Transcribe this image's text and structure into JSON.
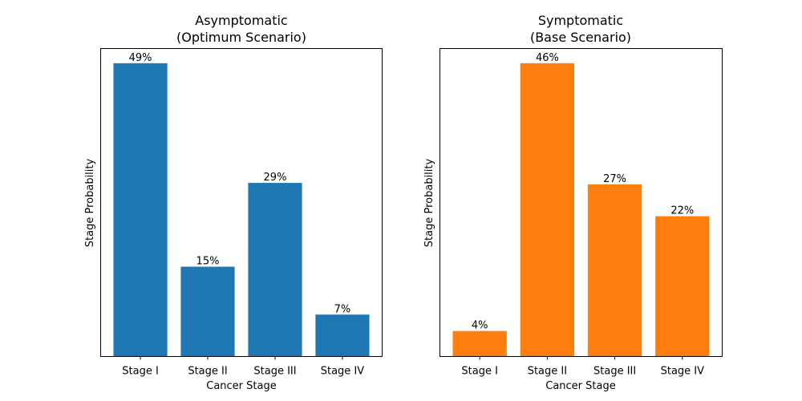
{
  "chart_data": [
    {
      "type": "bar",
      "title_line1": "Asymptomatic",
      "title_line2": "(Optimum Scenario)",
      "xlabel": "Cancer Stage",
      "ylabel": "Stage Probability",
      "categories": [
        "Stage I",
        "Stage II",
        "Stage III",
        "Stage IV"
      ],
      "values": [
        0.49,
        0.15,
        0.29,
        0.07
      ],
      "value_labels": [
        "49%",
        "15%",
        "29%",
        "7%"
      ],
      "ylim": [
        0,
        0.5145
      ],
      "yticks_shown": false,
      "grid": false,
      "color": "#1f77b4"
    },
    {
      "type": "bar",
      "title_line1": "Symptomatic",
      "title_line2": "(Base Scenario)",
      "xlabel": "Cancer Stage",
      "ylabel": "Stage Probability",
      "categories": [
        "Stage I",
        "Stage II",
        "Stage III",
        "Stage IV"
      ],
      "values": [
        0.04,
        0.46,
        0.27,
        0.22
      ],
      "value_labels": [
        "4%",
        "46%",
        "27%",
        "22%"
      ],
      "ylim": [
        0,
        0.483
      ],
      "yticks_shown": false,
      "grid": false,
      "color": "#ff7f0e"
    }
  ]
}
